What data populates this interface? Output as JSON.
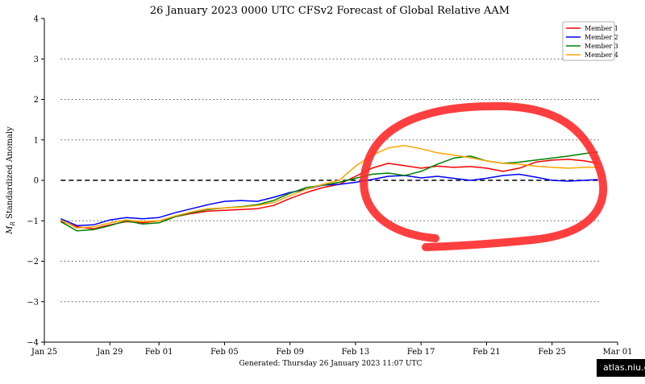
{
  "chart_data": {
    "type": "line",
    "title": "26  January  2023 0000 UTC   CFSv2 Forecast of Global Relative AAM",
    "ylabel": "M_R Standardized Anomaly",
    "footer": "Generated: Thursday  26  January  2023  11:07 UTC",
    "ylim": [
      -4,
      4
    ],
    "yticks": [
      "−4",
      "−3",
      "−2",
      "−1",
      "0",
      "1",
      "2",
      "3",
      "4"
    ],
    "xtick_labels": [
      "Jan 25",
      "Jan 29",
      "Feb 01",
      "Feb 05",
      "Feb 09",
      "Feb 13",
      "Feb 17",
      "Feb 21",
      "Feb 25",
      "Mar 01"
    ],
    "xtick_days": [
      0,
      4,
      7,
      11,
      15,
      19,
      23,
      27,
      31,
      35
    ],
    "xlim_days": [
      0,
      35
    ],
    "x_origin_label": "Jan 25",
    "grid": "dotted horizontal lines at ±1, ±2, ±3; dashed zero line",
    "legend_position": "top-right",
    "series": [
      {
        "name": "Member 1",
        "color": "#ff0000",
        "x": [
          1,
          2,
          3,
          4,
          5,
          6,
          7,
          8,
          9,
          10,
          11,
          12,
          13,
          14,
          15,
          16,
          17,
          18,
          19,
          20,
          21,
          22,
          23,
          24,
          25,
          26,
          27,
          28,
          29,
          30,
          31,
          32,
          33,
          33.8
        ],
        "y": [
          -1.0,
          -1.15,
          -1.2,
          -1.1,
          -1.02,
          -1.05,
          -1.0,
          -0.9,
          -0.82,
          -0.76,
          -0.74,
          -0.72,
          -0.7,
          -0.62,
          -0.45,
          -0.3,
          -0.18,
          -0.1,
          0.1,
          0.3,
          0.42,
          0.36,
          0.3,
          0.35,
          0.32,
          0.34,
          0.3,
          0.22,
          0.3,
          0.45,
          0.5,
          0.52,
          0.48,
          0.42
        ]
      },
      {
        "name": "Member 2",
        "color": "#0000ff",
        "x": [
          1,
          2,
          3,
          4,
          5,
          6,
          7,
          8,
          9,
          10,
          11,
          12,
          13,
          14,
          15,
          16,
          17,
          18,
          19,
          20,
          21,
          22,
          23,
          24,
          25,
          26,
          27,
          28,
          29,
          30,
          31,
          32,
          33,
          33.8
        ],
        "y": [
          -0.95,
          -1.12,
          -1.1,
          -0.98,
          -0.92,
          -0.95,
          -0.92,
          -0.8,
          -0.7,
          -0.6,
          -0.52,
          -0.5,
          -0.52,
          -0.42,
          -0.3,
          -0.22,
          -0.12,
          -0.1,
          -0.05,
          0.02,
          0.1,
          0.12,
          0.06,
          0.1,
          0.05,
          0.0,
          0.05,
          0.12,
          0.15,
          0.08,
          0.0,
          -0.02,
          0.0,
          0.02
        ]
      },
      {
        "name": "Member 3",
        "color": "#008000",
        "x": [
          1,
          2,
          3,
          4,
          5,
          6,
          7,
          8,
          9,
          10,
          11,
          12,
          13,
          14,
          15,
          16,
          17,
          18,
          19,
          20,
          21,
          22,
          23,
          24,
          25,
          26,
          27,
          28,
          29,
          30,
          31,
          32,
          33,
          33.8
        ],
        "y": [
          -1.02,
          -1.25,
          -1.22,
          -1.12,
          -1.0,
          -1.08,
          -1.05,
          -0.9,
          -0.8,
          -0.72,
          -0.68,
          -0.65,
          -0.6,
          -0.5,
          -0.32,
          -0.18,
          -0.12,
          -0.05,
          0.05,
          0.15,
          0.18,
          0.12,
          0.22,
          0.4,
          0.55,
          0.6,
          0.48,
          0.42,
          0.45,
          0.5,
          0.55,
          0.6,
          0.66,
          0.7
        ]
      },
      {
        "name": "Member 4",
        "color": "#ffa500",
        "x": [
          1,
          2,
          3,
          4,
          5,
          6,
          7,
          8,
          9,
          10,
          11,
          12,
          13,
          14,
          15,
          16,
          17,
          18,
          19,
          20,
          21,
          22,
          23,
          24,
          25,
          26,
          27,
          28,
          29,
          30,
          31,
          32,
          33,
          33.8
        ],
        "y": [
          -0.98,
          -1.18,
          -1.15,
          -1.05,
          -0.98,
          -1.02,
          -1.0,
          -0.88,
          -0.78,
          -0.7,
          -0.68,
          -0.66,
          -0.62,
          -0.55,
          -0.38,
          -0.22,
          -0.1,
          0.0,
          0.35,
          0.62,
          0.8,
          0.86,
          0.78,
          0.68,
          0.62,
          0.56,
          0.48,
          0.42,
          0.4,
          0.35,
          0.32,
          0.3,
          0.32,
          0.32
        ]
      }
    ]
  },
  "annotation": {
    "shape": "hand-drawn ellipse",
    "color": "#ff2a2a"
  },
  "watermark": "atlas.niu.edu"
}
